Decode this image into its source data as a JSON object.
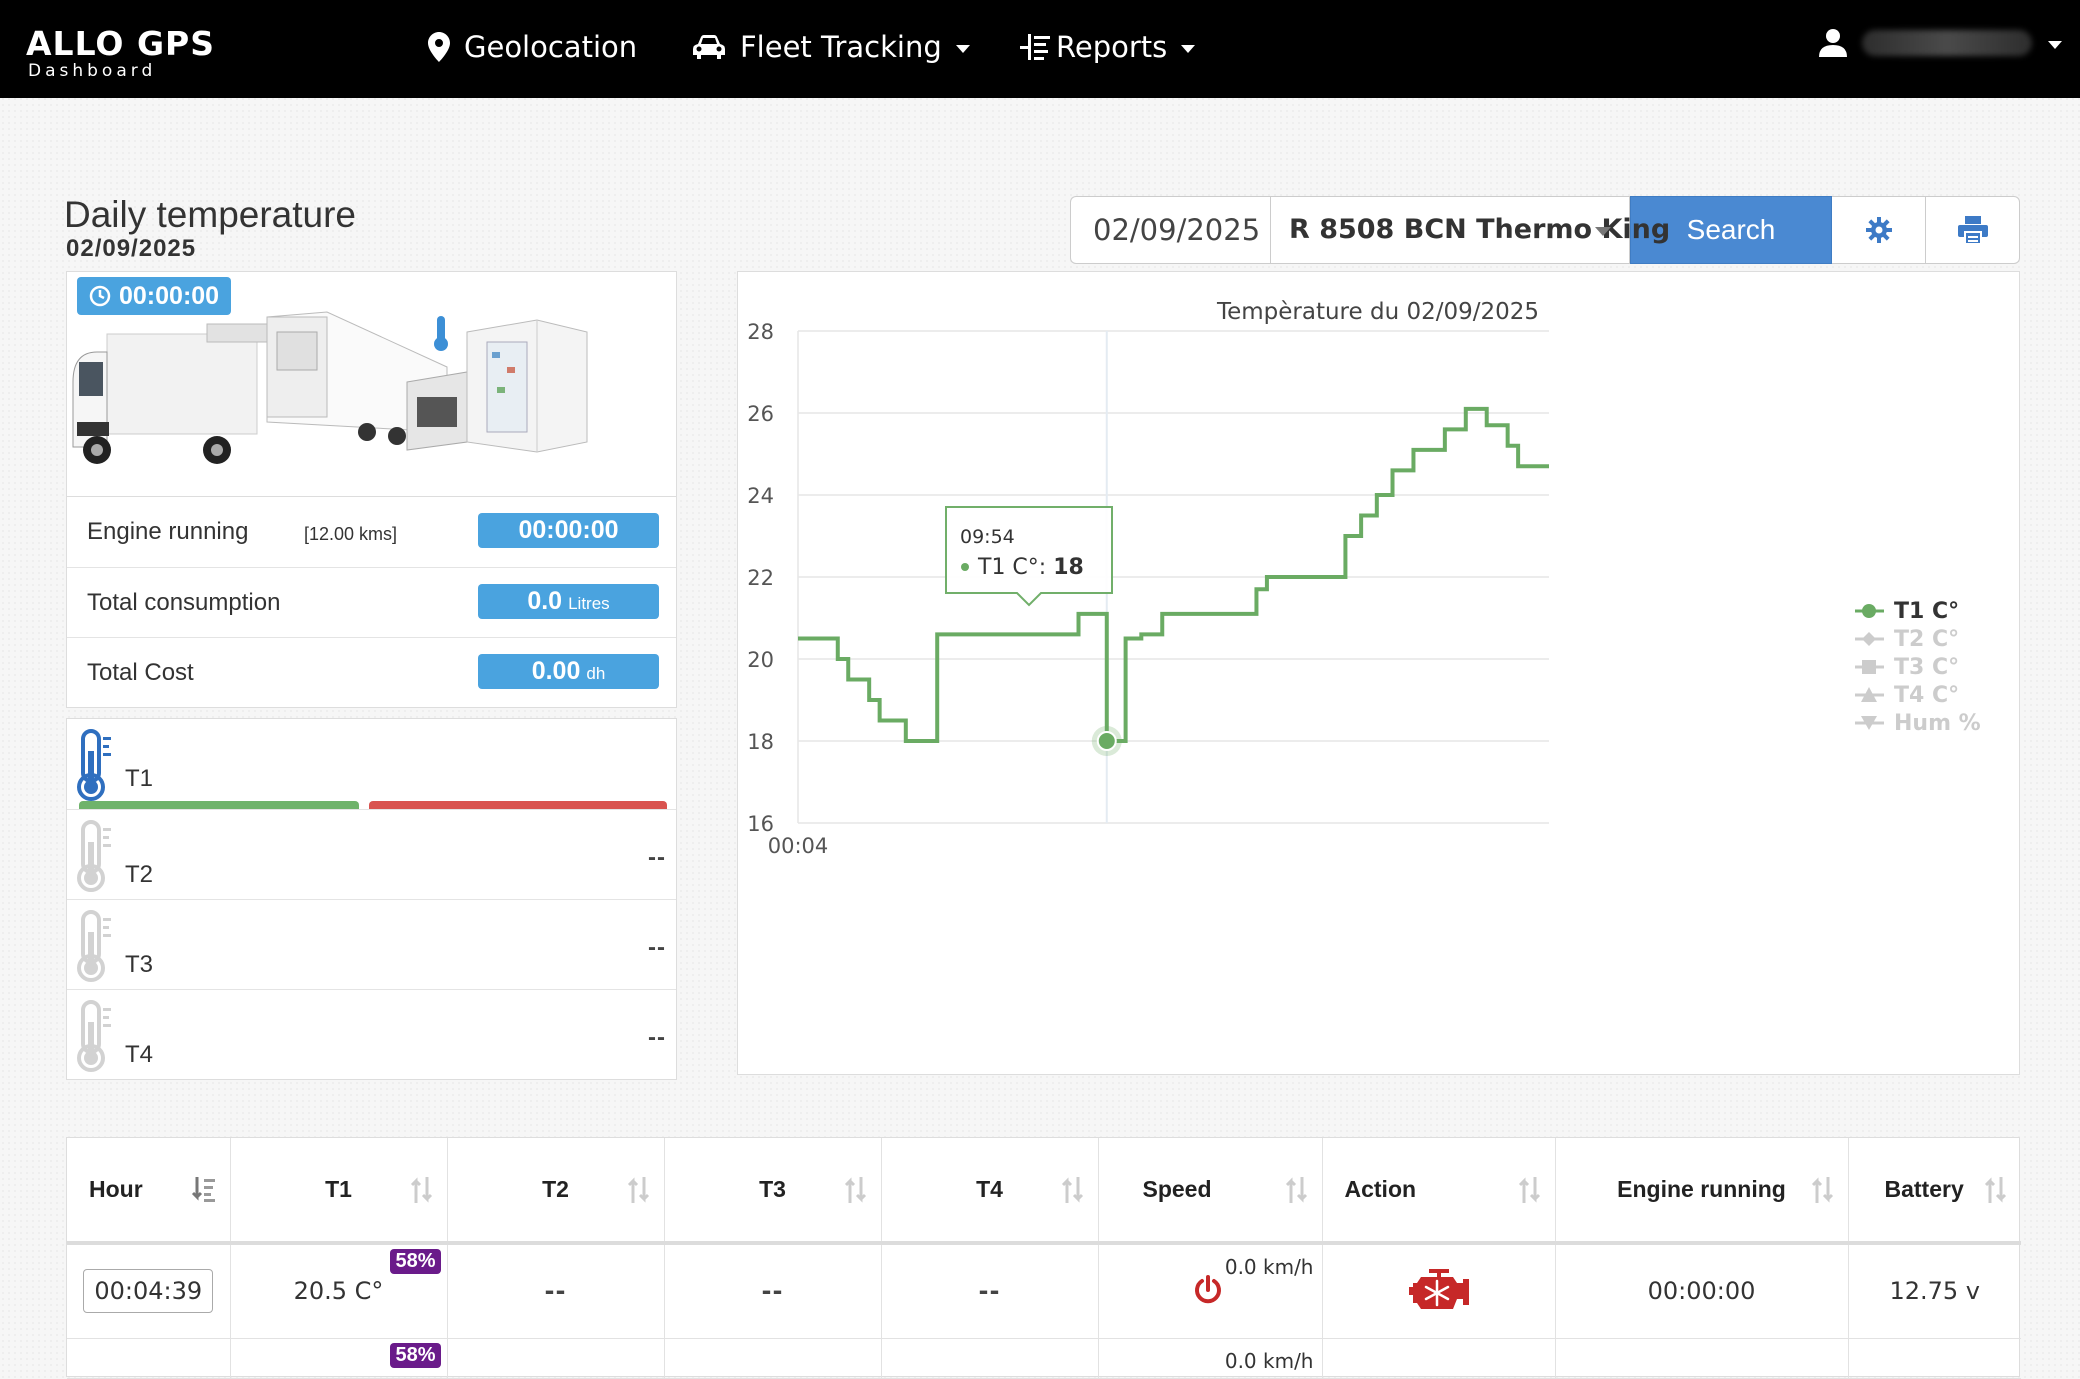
{
  "nav": {
    "brand_title": "ALLO GPS",
    "brand_sub": "Dashboard",
    "geolocation": "Geolocation",
    "fleet_tracking": "Fleet Tracking",
    "reports": "Reports",
    "pin_icon": "map-pin-icon",
    "car_icon": "car-icon",
    "reports_icon": "list-icon",
    "user_icon": "user-icon"
  },
  "header": {
    "title": "Daily temperature",
    "date": "02/09/2025"
  },
  "toolbar": {
    "date_value": "02/09/2025",
    "vehicle": "R 8508 BCN Thermo King",
    "search_label": "Search",
    "settings_icon": "gear-icon",
    "print_icon": "print-icon",
    "accent": "#4a89d2"
  },
  "summary": {
    "time_badge": "00:00:00",
    "engine_label": "Engine running",
    "engine_km": "[12.00 kms]",
    "engine_value": "00:00:00",
    "consumption_label": "Total consumption",
    "consumption_value": "0.0",
    "consumption_unit": "Litres",
    "cost_label": "Total Cost",
    "cost_value": "0.00",
    "cost_unit": "dh",
    "badge_color": "#4aa3df"
  },
  "sensors": [
    {
      "label": "T1",
      "value": ""
    },
    {
      "label": "T2",
      "value": "--"
    },
    {
      "label": "T3",
      "value": "--"
    },
    {
      "label": "T4",
      "value": "--"
    }
  ],
  "chart_data": {
    "type": "line",
    "title": "Tempèrature du 02/09/2025",
    "xlabel": "",
    "ylabel": "",
    "ylim": [
      16,
      28
    ],
    "yticks": [
      16,
      18,
      20,
      22,
      24,
      26,
      28
    ],
    "xticks": [
      "00:04"
    ],
    "x_range": [
      "00:04",
      "23:59"
    ],
    "grid": true,
    "legend_position": "right",
    "step": true,
    "series": [
      {
        "name": "T1 C°",
        "color": "#6aab63",
        "visible": true,
        "x": [
          "00:04",
          "01:20",
          "01:40",
          "02:20",
          "02:40",
          "03:30",
          "04:30",
          "09:00",
          "09:54",
          "10:30",
          "11:00",
          "11:40",
          "14:40",
          "15:00",
          "17:30",
          "18:00",
          "18:30",
          "19:00",
          "19:40",
          "20:10",
          "20:40",
          "21:00",
          "21:20",
          "21:40",
          "22:00",
          "22:40",
          "23:00",
          "23:20",
          "23:40",
          "23:59"
        ],
        "values": [
          20.5,
          20.0,
          19.5,
          19.0,
          18.5,
          18.0,
          20.6,
          21.1,
          18.0,
          20.5,
          20.6,
          21.1,
          21.7,
          22.0,
          23.0,
          23.5,
          24.0,
          24.6,
          25.1,
          25.1,
          25.6,
          25.6,
          26.1,
          26.1,
          25.7,
          25.2,
          24.7,
          24.7,
          24.7,
          24.7
        ]
      },
      {
        "name": "T2 C°",
        "color": "#cccccc",
        "visible": false,
        "values": []
      },
      {
        "name": "T3 C°",
        "color": "#cccccc",
        "visible": false,
        "values": []
      },
      {
        "name": "T4 C°",
        "color": "#cccccc",
        "visible": false,
        "values": []
      },
      {
        "name": "Hum %",
        "color": "#cccccc",
        "visible": false,
        "values": []
      }
    ],
    "tooltip": {
      "time": "09:54",
      "series": "T1 C°",
      "value": "18"
    }
  },
  "table": {
    "headers": [
      "Hour",
      "T1",
      "T2",
      "T3",
      "T4",
      "Speed",
      "Action",
      "Engine running",
      "Battery"
    ],
    "rows": [
      {
        "hour": "00:04:39",
        "t1": "20.5 C°",
        "t1_pct": "58%",
        "t2": "--",
        "t3": "--",
        "t4": "--",
        "speed": "0.0 km/h",
        "power_icon": "power-icon",
        "action_icon": "engine-frost-icon",
        "engine": "00:00:00",
        "battery": "12.75 v"
      },
      {
        "t1_pct": "58%",
        "speed": "0.0 km/h"
      }
    ]
  }
}
